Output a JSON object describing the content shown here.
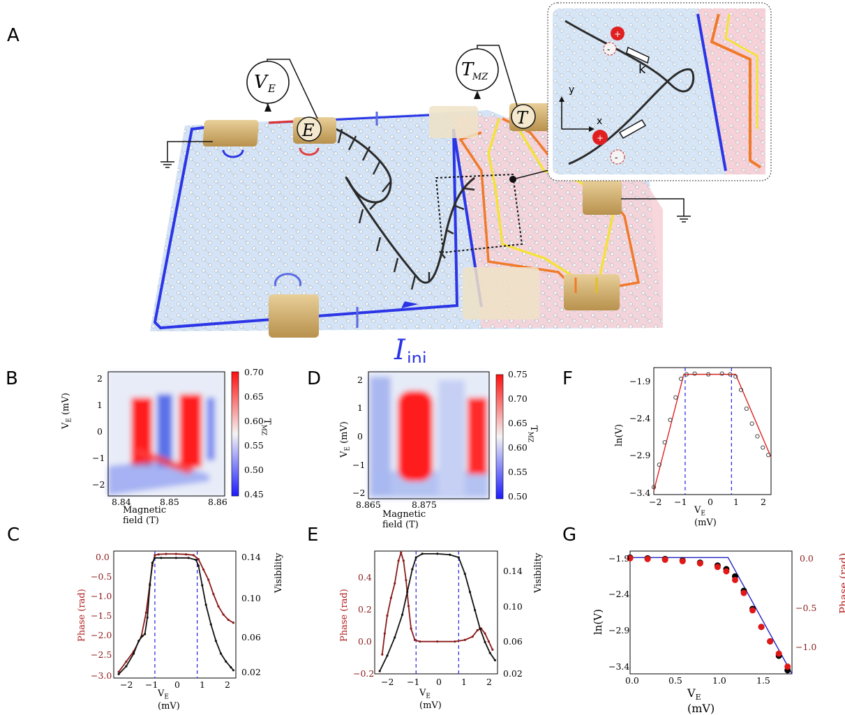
{
  "panels": {
    "A": "A",
    "B": "B",
    "C": "C",
    "D": "D",
    "E": "E",
    "F": "F",
    "G": "G"
  },
  "schematic": {
    "meter_ve": "V",
    "meter_ve_sub": "E",
    "meter_tmz": "T",
    "meter_tmz_sub": "MZ",
    "contact_e": "E",
    "contact_t": "T",
    "current_label": "I",
    "current_sub": "inj",
    "inset_k": "k",
    "inset_x": "x",
    "inset_y": "y",
    "plus": "+",
    "minus": "-",
    "colors": {
      "blue_edge": "#2b35e6",
      "orange_edge": "#f07a2a",
      "yellow_edge": "#f4e23a",
      "gold_contact": "#d9b777",
      "blue_region": "#cfe0f5",
      "pink_region": "#f7d3d8"
    }
  },
  "chart_data": [
    {
      "id": "B",
      "type": "heatmap",
      "xlabel": "Magnetic field (T)",
      "ylabel_main": "V",
      "ylabel_sub": "E",
      "ylabel_unit": " (mV)",
      "xticks": [
        "8.84",
        "8.85",
        "8.86"
      ],
      "yticks": [
        "2",
        "1",
        "0",
        "−1",
        "−2"
      ],
      "colorbar": {
        "label_main": "T",
        "label_sub": "MZ",
        "ticks": [
          "0.70",
          "0.65",
          "0.60",
          "0.55",
          "0.50",
          "0.45"
        ],
        "range": [
          0.45,
          0.7
        ]
      }
    },
    {
      "id": "D",
      "type": "heatmap",
      "xlabel": "Magnetic field (T)",
      "ylabel_main": "V",
      "ylabel_sub": "E",
      "ylabel_unit": " (mV)",
      "xticks": [
        "8.865",
        "8.875"
      ],
      "yticks": [
        "2",
        "1",
        "0",
        "−1",
        "−2"
      ],
      "colorbar": {
        "label_main": "T",
        "label_sub": "MZ",
        "ticks": [
          "0.75",
          "0.70",
          "0.65",
          "0.60",
          "0.55",
          "0.50"
        ],
        "range": [
          0.5,
          0.75
        ]
      }
    },
    {
      "id": "C",
      "type": "line",
      "xlabel_main": "V",
      "xlabel_sub": "E",
      "xlabel_unit": " (mV)",
      "ylabel_left": "Phase (rad)",
      "ylabel_right": "Visibility",
      "xticks": [
        "−2",
        "−1",
        "0",
        "1",
        "2"
      ],
      "yticks_left": [
        "0.0",
        "−0.5",
        "−1.0",
        "−1.5",
        "−2.0",
        "−2.5",
        "−3.0"
      ],
      "yticks_right": [
        "0.14",
        "0.10",
        "0.06",
        "0.02"
      ],
      "xlim": [
        -2.5,
        2.4
      ],
      "ylim_left": [
        -3.0,
        0.1
      ],
      "ylim_right": [
        0.02,
        0.15
      ],
      "vlines": [
        -0.85,
        0.85
      ],
      "series": [
        {
          "axis": "left",
          "color": "#8b1a1a",
          "x": [
            -2.3,
            -2.0,
            -1.7,
            -1.4,
            -1.2,
            -1.05,
            -0.95,
            -0.85,
            -0.7,
            -0.4,
            0,
            0.4,
            0.7,
            0.9,
            1.1,
            1.3,
            1.5,
            1.7,
            1.9,
            2.1,
            2.3
          ],
          "y": [
            -2.85,
            -2.6,
            -2.35,
            -2.0,
            -1.4,
            -0.7,
            -0.25,
            0.0,
            0.02,
            0.03,
            0.03,
            0.02,
            0.0,
            -0.1,
            -0.35,
            -0.6,
            -0.95,
            -1.25,
            -1.45,
            -1.58,
            -1.65
          ]
        },
        {
          "axis": "right",
          "color": "#111111",
          "x": [
            -2.3,
            -2.0,
            -1.7,
            -1.5,
            -1.35,
            -1.25,
            -1.15,
            -1.05,
            -0.95,
            -0.85,
            -0.6,
            0,
            0.5,
            0.8,
            0.9,
            1.05,
            1.2,
            1.4,
            1.6,
            1.8,
            2.0,
            2.2,
            2.3
          ],
          "y": [
            0.024,
            0.032,
            0.045,
            0.058,
            0.063,
            0.065,
            0.082,
            0.115,
            0.138,
            0.143,
            0.143,
            0.143,
            0.143,
            0.141,
            0.135,
            0.115,
            0.095,
            0.075,
            0.058,
            0.045,
            0.037,
            0.031,
            0.028
          ]
        }
      ]
    },
    {
      "id": "E",
      "type": "line",
      "xlabel_main": "V",
      "xlabel_sub": "E",
      "xlabel_unit": " (mV)",
      "ylabel_left": "Phase (rad)",
      "ylabel_right": "Visibility",
      "xticks": [
        "−2",
        "−1",
        "0",
        "1",
        "2"
      ],
      "yticks_left": [
        "0.4",
        "0.2",
        "0.0",
        "−0.2"
      ],
      "yticks_right": [
        "0.14",
        "0.10",
        "0.06",
        "0.02"
      ],
      "xlim": [
        -2.5,
        2.4
      ],
      "ylim_left": [
        -0.2,
        0.56
      ],
      "ylim_right": [
        0.02,
        0.155
      ],
      "vlines": [
        -0.85,
        0.85
      ],
      "series": [
        {
          "axis": "left",
          "color": "#8b1a1a",
          "x": [
            -2.2,
            -2.1,
            -2.0,
            -1.85,
            -1.7,
            -1.55,
            -1.45,
            -1.35,
            -1.25,
            -1.15,
            -1.05,
            -0.9,
            -0.7,
            0,
            0.7,
            1.1,
            1.4,
            1.6,
            1.75,
            1.9,
            2.05,
            2.2
          ],
          "y": [
            -0.08,
            0.05,
            0.16,
            0.27,
            0.36,
            0.5,
            0.55,
            0.5,
            0.38,
            0.22,
            0.08,
            0.01,
            0.0,
            0.0,
            0.0,
            0.01,
            0.03,
            0.07,
            0.08,
            0.05,
            0.0,
            -0.05
          ]
        },
        {
          "axis": "right",
          "color": "#111111",
          "x": [
            -2.3,
            -2.0,
            -1.7,
            -1.4,
            -1.2,
            -1.0,
            -0.85,
            -0.6,
            0,
            0.5,
            0.85,
            1.1,
            1.3,
            1.5,
            1.7,
            1.9,
            2.1,
            2.3
          ],
          "y": [
            0.023,
            0.04,
            0.06,
            0.085,
            0.11,
            0.135,
            0.148,
            0.152,
            0.152,
            0.151,
            0.148,
            0.13,
            0.11,
            0.09,
            0.07,
            0.055,
            0.043,
            0.035
          ]
        }
      ]
    },
    {
      "id": "F",
      "type": "scatter",
      "xlabel_main": "V",
      "xlabel_sub": "E",
      "xlabel_unit": " (mV)",
      "ylabel": "ln(V)",
      "xticks": [
        "−2",
        "−1",
        "0",
        "1",
        "2"
      ],
      "yticks": [
        "−1.9",
        "−2.4",
        "−2.9",
        "−3.4"
      ],
      "xlim": [
        -2.0,
        2.3
      ],
      "ylim": [
        -3.5,
        -1.8
      ],
      "vlines": [
        -0.85,
        0.85
      ],
      "series": [
        {
          "name": "fit",
          "color": "#e02020",
          "x": [
            -2.0,
            -0.9,
            1.0,
            2.3
          ],
          "y": [
            -3.45,
            -1.89,
            -1.89,
            -3.0
          ]
        },
        {
          "name": "data",
          "color": "#444444",
          "x": [
            -2.0,
            -1.8,
            -1.6,
            -1.4,
            -1.2,
            -1.0,
            -0.8,
            -0.5,
            0,
            0.5,
            0.8,
            1.0,
            1.2,
            1.4,
            1.6,
            1.8,
            2.0,
            2.2
          ],
          "y": [
            -3.4,
            -3.1,
            -2.8,
            -2.5,
            -2.2,
            -1.95,
            -1.89,
            -1.88,
            -1.89,
            -1.88,
            -1.89,
            -1.92,
            -2.1,
            -2.35,
            -2.55,
            -2.72,
            -2.87,
            -2.97
          ]
        }
      ]
    },
    {
      "id": "G",
      "type": "scatter",
      "xlabel_main": "V",
      "xlabel_sub": "E",
      "xlabel_unit": " (mV)",
      "ylabel_left": "ln(V)",
      "ylabel_right": "Phase (rad)",
      "xticks": [
        "0.0",
        "0.5",
        "1.0",
        "1.5"
      ],
      "yticks_left": [
        "−1.9",
        "−2.4",
        "−2.9",
        "−3.4"
      ],
      "yticks_right": [
        "0.0",
        "−0.5",
        "−1.0"
      ],
      "xlim": [
        0.0,
        1.85
      ],
      "ylim_left": [
        -3.5,
        -1.8
      ],
      "ylim_right": [
        -1.2,
        0.08
      ],
      "series": [
        {
          "name": "fit",
          "color": "#2020c0",
          "x": [
            0.0,
            1.12,
            1.85
          ],
          "y": [
            -1.89,
            -1.89,
            -3.5
          ]
        },
        {
          "name": "ln(V)",
          "color": "#000000",
          "x": [
            0.0,
            0.2,
            0.4,
            0.6,
            0.8,
            1.0,
            1.1,
            1.2,
            1.3,
            1.4,
            1.5,
            1.6,
            1.7,
            1.8
          ],
          "y": [
            -1.89,
            -1.9,
            -1.91,
            -1.93,
            -1.96,
            -2.0,
            -2.05,
            -2.15,
            -2.35,
            -2.6,
            -2.85,
            -3.05,
            -3.25,
            -3.45
          ]
        },
        {
          "name": "phase",
          "color": "#e01818",
          "x": [
            0.0,
            0.2,
            0.4,
            0.6,
            0.8,
            1.0,
            1.1,
            1.2,
            1.3,
            1.4,
            1.5,
            1.6,
            1.7,
            1.8
          ],
          "y": [
            -1.9,
            -1.91,
            -1.92,
            -1.94,
            -1.97,
            -2.02,
            -2.08,
            -2.2,
            -2.38,
            -2.62,
            -2.85,
            -3.05,
            -3.22,
            -3.4
          ]
        }
      ]
    }
  ]
}
